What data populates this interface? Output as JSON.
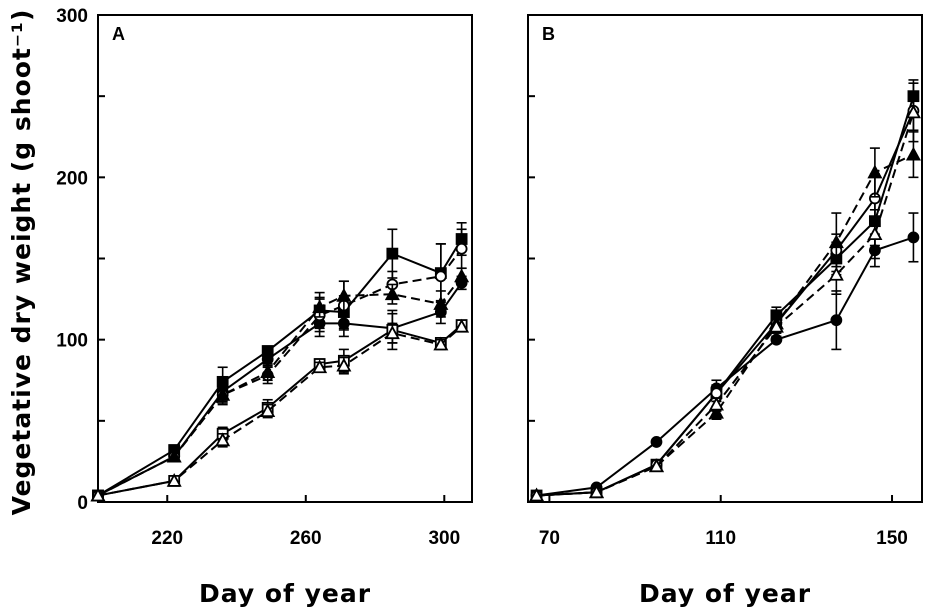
{
  "ylabel": "Vegetative dry weight (g shoot⁻¹)",
  "chart_data": [
    {
      "type": "line",
      "panel_label": "A",
      "xlabel": "Day of year",
      "ylabel": "Vegetative dry weight (g shoot⁻¹)",
      "xlim": [
        200,
        308
      ],
      "ylim": [
        0,
        300
      ],
      "xticks": [
        220,
        260,
        300
      ],
      "yticks": [
        0,
        100,
        200,
        300
      ],
      "grid": false,
      "series": [
        {
          "marker": "filled-square",
          "dash": "solid",
          "x": [
            200,
            222,
            236,
            249,
            264,
            271,
            285,
            299,
            305
          ],
          "y": [
            4,
            32,
            74,
            93,
            118,
            117,
            153,
            141,
            162
          ],
          "err": [
            0,
            3,
            9,
            3,
            11,
            10,
            15,
            18,
            10
          ]
        },
        {
          "marker": "filled-circle",
          "dash": "solid",
          "x": [
            200,
            222,
            236,
            249,
            264,
            271,
            285,
            299,
            305
          ],
          "y": [
            4,
            28,
            68,
            88,
            110,
            110,
            107,
            117,
            135
          ],
          "err": [
            0,
            0,
            6,
            4,
            8,
            8,
            9,
            7,
            4
          ]
        },
        {
          "marker": "open-square",
          "dash": "solid",
          "x": [
            200,
            222,
            236,
            249,
            264,
            271,
            285,
            299,
            305
          ],
          "y": [
            4,
            13,
            42,
            58,
            85,
            87,
            106,
            98,
            109
          ],
          "err": [
            0,
            0,
            4,
            5,
            3,
            7,
            12,
            3,
            0
          ]
        },
        {
          "marker": "open-circle",
          "dash": "dashed",
          "x": [
            200,
            222,
            236,
            249,
            264,
            271,
            285,
            299,
            305
          ],
          "y": [
            4,
            28,
            66,
            78,
            115,
            121,
            134,
            139,
            156
          ],
          "err": [
            0,
            0,
            5,
            5,
            10,
            15,
            8,
            20,
            12
          ]
        },
        {
          "marker": "filled-triangle",
          "dash": "dashed",
          "x": [
            200,
            222,
            236,
            249,
            264,
            271,
            285,
            299,
            305
          ],
          "y": [
            4,
            28,
            66,
            80,
            120,
            127,
            128,
            122,
            139
          ],
          "err": [
            0,
            0,
            6,
            5,
            6,
            9,
            6,
            8,
            5
          ]
        },
        {
          "marker": "open-triangle",
          "dash": "dashed",
          "x": [
            200,
            222,
            236,
            249,
            264,
            271,
            285,
            299,
            305
          ],
          "y": [
            4,
            13,
            38,
            56,
            83,
            84,
            104,
            97,
            108
          ],
          "err": [
            0,
            0,
            4,
            4,
            3,
            5,
            6,
            3,
            0
          ]
        }
      ]
    },
    {
      "type": "line",
      "panel_label": "B",
      "xlabel": "Day of year",
      "xlim": [
        65,
        157
      ],
      "ylim": [
        0,
        300
      ],
      "xticks": [
        70,
        110,
        150
      ],
      "yticks": [
        0,
        100,
        200,
        300
      ],
      "grid": false,
      "series": [
        {
          "marker": "filled-square",
          "dash": "solid",
          "x": [
            67,
            81,
            95,
            109,
            123,
            137,
            146,
            155
          ],
          "y": [
            4,
            6,
            23,
            67,
            115,
            150,
            173,
            250
          ],
          "err": [
            0,
            0,
            0,
            5,
            5,
            10,
            15,
            10
          ]
        },
        {
          "marker": "filled-circle",
          "dash": "solid",
          "x": [
            67,
            81,
            95,
            109,
            123,
            137,
            146,
            155
          ],
          "y": [
            4,
            9,
            37,
            70,
            100,
            112,
            155,
            163
          ],
          "err": [
            0,
            0,
            0,
            5,
            0,
            18,
            10,
            15
          ]
        },
        {
          "marker": "open-circle",
          "dash": "solid",
          "x": [
            67,
            81,
            95,
            109,
            123,
            137,
            146,
            155
          ],
          "y": [
            4,
            6,
            23,
            67,
            110,
            155,
            187,
            241
          ],
          "err": [
            0,
            0,
            0,
            5,
            6,
            10,
            15,
            12
          ]
        },
        {
          "marker": "filled-triangle",
          "dash": "dashed",
          "x": [
            67,
            81,
            95,
            109,
            123,
            137,
            146,
            155
          ],
          "y": [
            4,
            6,
            22,
            55,
            110,
            160,
            203,
            214
          ],
          "err": [
            0,
            0,
            0,
            4,
            8,
            18,
            15,
            14
          ]
        },
        {
          "marker": "open-triangle",
          "dash": "dashed",
          "x": [
            67,
            81,
            95,
            109,
            123,
            137,
            146,
            155
          ],
          "y": [
            4,
            6,
            22,
            60,
            108,
            140,
            165,
            240
          ],
          "err": [
            0,
            0,
            0,
            4,
            6,
            12,
            15,
            18
          ]
        }
      ]
    }
  ]
}
